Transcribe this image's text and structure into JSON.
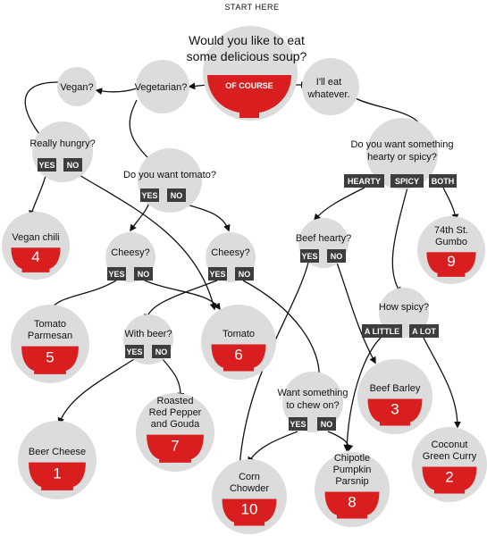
{
  "start": {
    "caption": "START HERE",
    "question_line1": "Would you like to eat",
    "question_line2": "some delicious soup?",
    "answer": "OF COURSE"
  },
  "nodes": {
    "vegetarian": "Vegetarian?",
    "vegan": "Vegan?",
    "whatever_line1": "I'll eat",
    "whatever_line2": "whatever.",
    "really_hungry": "Really hungry?",
    "want_tomato": "Do you want tomato?",
    "cheesy_left": "Cheesy?",
    "cheesy_right": "Cheesy?",
    "with_beer": "With beer?",
    "hearty_spicy_line1": "Do you want something",
    "hearty_spicy_line2": "hearty or spicy?",
    "beef_hearty": "Beef hearty?",
    "how_spicy": "How spicy?",
    "chew_line1": "Want something",
    "chew_line2": "to chew on?"
  },
  "buttons": {
    "yes": "YES",
    "no": "NO",
    "hearty": "HEARTY",
    "spicy": "SPICY",
    "both": "BOTH",
    "a_little": "A LITTLE",
    "a_lot": "A LOT"
  },
  "soups": [
    {
      "number": "4",
      "line1": "Vegan chili",
      "line2": "",
      "line3": ""
    },
    {
      "number": "9",
      "line1": "74th St.",
      "line2": "Gumbo",
      "line3": ""
    },
    {
      "number": "5",
      "line1": "Tomato",
      "line2": "Parmesan",
      "line3": ""
    },
    {
      "number": "6",
      "line1": "Tomato",
      "line2": "",
      "line3": ""
    },
    {
      "number": "3",
      "line1": "Beef Barley",
      "line2": "",
      "line3": ""
    },
    {
      "number": "1",
      "line1": "Beer Cheese",
      "line2": "",
      "line3": ""
    },
    {
      "number": "7",
      "line1": "Roasted",
      "line2": "Red Pepper",
      "line3": "and Gouda"
    },
    {
      "number": "2",
      "line1": "Coconut",
      "line2": "Green Curry",
      "line3": ""
    },
    {
      "number": "10",
      "line1": "Corn",
      "line2": "Chowder",
      "line3": ""
    },
    {
      "number": "8",
      "line1": "Chipotle",
      "line2": "Pumpkin",
      "line3": "Parsnip"
    }
  ],
  "colors": {
    "bowl": "#d81e1e",
    "circle": "#dcdcdc",
    "button": "#3d3d3d"
  }
}
